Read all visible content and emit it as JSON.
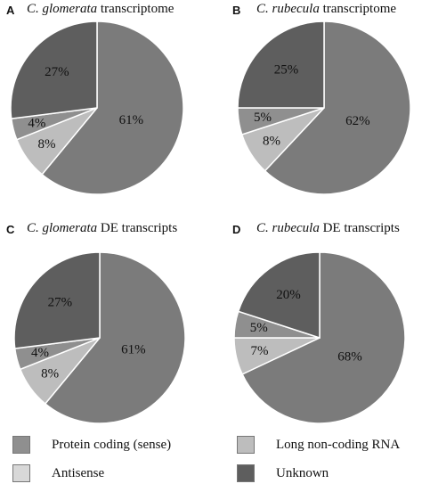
{
  "colors": {
    "protein_coding": "#8f8f8f",
    "unknown": "#5e5e5e",
    "long_noncoding": "#bdbdbd",
    "antisense": "#d8d8d8",
    "main": "#7b7b7b"
  },
  "legend": {
    "protein_coding": "Protein coding (sense)",
    "long_noncoding": "Long non-coding RNA",
    "antisense": "Antisense",
    "unknown": "Unknown"
  },
  "chart_data": [
    {
      "type": "pie",
      "panel_letter": "A",
      "title_italic": "C. glomerata",
      "title_rest": " transcriptome",
      "slices": [
        {
          "label": "61%",
          "value": 61,
          "category": "main"
        },
        {
          "label": "8%",
          "value": 8,
          "category": "long_noncoding"
        },
        {
          "label": "4%",
          "value": 4,
          "category": "protein_coding"
        },
        {
          "label": "27%",
          "value": 27,
          "category": "unknown"
        }
      ]
    },
    {
      "type": "pie",
      "panel_letter": "B",
      "title_italic": "C. rubecula",
      "title_rest": " transcriptome",
      "slices": [
        {
          "label": "62%",
          "value": 62,
          "category": "main"
        },
        {
          "label": "8%",
          "value": 8,
          "category": "long_noncoding"
        },
        {
          "label": "5%",
          "value": 5,
          "category": "protein_coding"
        },
        {
          "label": "25%",
          "value": 25,
          "category": "unknown"
        }
      ]
    },
    {
      "type": "pie",
      "panel_letter": "C",
      "title_italic": "C. glomerata",
      "title_rest": " DE transcripts",
      "slices": [
        {
          "label": "61%",
          "value": 61,
          "category": "main"
        },
        {
          "label": "8%",
          "value": 8,
          "category": "long_noncoding"
        },
        {
          "label": "4%",
          "value": 4,
          "category": "protein_coding"
        },
        {
          "label": "27%",
          "value": 27,
          "category": "unknown"
        }
      ]
    },
    {
      "type": "pie",
      "panel_letter": "D",
      "title_italic": "C. rubecula",
      "title_rest": " DE transcripts",
      "slices": [
        {
          "label": "68%",
          "value": 68,
          "category": "main"
        },
        {
          "label": "7%",
          "value": 7,
          "category": "long_noncoding"
        },
        {
          "label": "5%",
          "value": 5,
          "category": "protein_coding"
        },
        {
          "label": "20%",
          "value": 20,
          "category": "unknown"
        }
      ]
    }
  ]
}
